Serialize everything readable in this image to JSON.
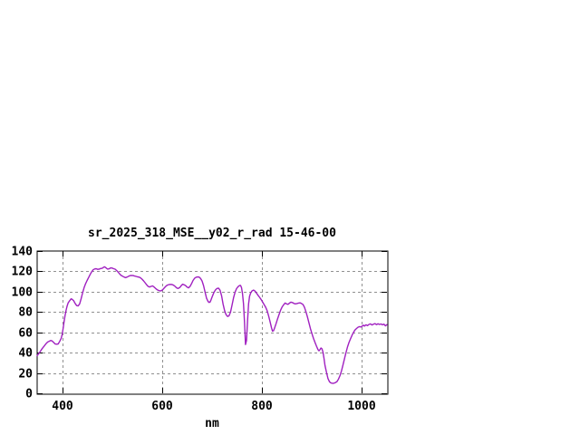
{
  "window": {
    "background_color": "#ffffff"
  },
  "chart_data": {
    "type": "line",
    "title": "sr_2025_318_MSE__y02_r_rad 15-46-00",
    "xlabel": "nm",
    "ylabel": "",
    "xlim": [
      350,
      1050
    ],
    "ylim": [
      0,
      140
    ],
    "x_ticks": [
      400,
      600,
      800,
      1000
    ],
    "y_ticks": [
      0,
      20,
      40,
      60,
      80,
      100,
      120,
      140
    ],
    "grid": true,
    "legend_position": "none",
    "line_color": "#a020c0",
    "axis_color": "#000000",
    "grid_color": "#909090",
    "series": [
      {
        "name": "sr_2025_318_MSE__y02_r_rad",
        "points": [
          [
            350,
            37
          ],
          [
            353,
            39
          ],
          [
            356,
            41
          ],
          [
            360,
            44
          ],
          [
            364,
            46.5
          ],
          [
            368,
            49
          ],
          [
            371,
            50.5
          ],
          [
            374,
            51.2
          ],
          [
            377,
            52
          ],
          [
            380,
            51.5
          ],
          [
            383,
            50
          ],
          [
            386,
            48.5
          ],
          [
            389,
            48.3
          ],
          [
            392,
            48.6
          ],
          [
            395,
            51
          ],
          [
            398,
            54
          ],
          [
            400,
            58
          ],
          [
            402,
            64
          ],
          [
            404,
            71
          ],
          [
            406,
            77
          ],
          [
            408,
            82
          ],
          [
            410,
            86
          ],
          [
            412,
            89
          ],
          [
            415,
            91
          ],
          [
            418,
            93
          ],
          [
            420,
            92.5
          ],
          [
            423,
            91
          ],
          [
            426,
            88.5
          ],
          [
            429,
            86.3
          ],
          [
            432,
            86
          ],
          [
            435,
            88
          ],
          [
            438,
            93
          ],
          [
            441,
            99
          ],
          [
            444,
            104
          ],
          [
            447,
            108
          ],
          [
            450,
            111
          ],
          [
            453,
            114
          ],
          [
            456,
            117
          ],
          [
            459,
            119.5
          ],
          [
            462,
            121.5
          ],
          [
            465,
            122.3
          ],
          [
            468,
            122.6
          ],
          [
            471,
            122
          ],
          [
            474,
            122.2
          ],
          [
            477,
            122.8
          ],
          [
            480,
            123
          ],
          [
            483,
            124
          ],
          [
            485,
            124.5
          ],
          [
            487,
            123.8
          ],
          [
            489,
            123
          ],
          [
            491,
            122.2
          ],
          [
            494,
            122.5
          ],
          [
            497,
            123.4
          ],
          [
            500,
            123.2
          ],
          [
            503,
            122.6
          ],
          [
            506,
            122.2
          ],
          [
            509,
            120.8
          ],
          [
            512,
            119.3
          ],
          [
            515,
            117.5
          ],
          [
            518,
            116
          ],
          [
            521,
            115.2
          ],
          [
            524,
            114.4
          ],
          [
            527,
            113.8
          ],
          [
            530,
            114.4
          ],
          [
            533,
            115.2
          ],
          [
            536,
            115.8
          ],
          [
            539,
            116
          ],
          [
            542,
            115.8
          ],
          [
            545,
            115.4
          ],
          [
            548,
            115
          ],
          [
            551,
            114.6
          ],
          [
            554,
            114.3
          ],
          [
            557,
            113.6
          ],
          [
            560,
            112.3
          ],
          [
            563,
            110.6
          ],
          [
            566,
            108.8
          ],
          [
            569,
            106.8
          ],
          [
            572,
            105.2
          ],
          [
            575,
            104.6
          ],
          [
            578,
            105.2
          ],
          [
            581,
            105.7
          ],
          [
            584,
            104.6
          ],
          [
            587,
            103.2
          ],
          [
            590,
            102
          ],
          [
            593,
            101.2
          ],
          [
            596,
            100.8
          ],
          [
            599,
            101
          ],
          [
            602,
            102.4
          ],
          [
            605,
            104
          ],
          [
            608,
            105.6
          ],
          [
            611,
            106.6
          ],
          [
            614,
            107
          ],
          [
            617,
            107.2
          ],
          [
            620,
            107
          ],
          [
            623,
            106.4
          ],
          [
            626,
            105.2
          ],
          [
            629,
            103.8
          ],
          [
            632,
            103.2
          ],
          [
            635,
            104
          ],
          [
            638,
            105.8
          ],
          [
            641,
            107.4
          ],
          [
            644,
            106.8
          ],
          [
            647,
            106
          ],
          [
            650,
            104.6
          ],
          [
            653,
            103.8
          ],
          [
            656,
            105.2
          ],
          [
            659,
            108
          ],
          [
            662,
            111
          ],
          [
            665,
            113.2
          ],
          [
            668,
            114.2
          ],
          [
            671,
            114.5
          ],
          [
            674,
            114.4
          ],
          [
            677,
            113
          ],
          [
            680,
            110.5
          ],
          [
            683,
            106
          ],
          [
            686,
            99.5
          ],
          [
            689,
            93.5
          ],
          [
            692,
            90.3
          ],
          [
            694,
            89.4
          ],
          [
            696,
            89.8
          ],
          [
            698,
            92
          ],
          [
            701,
            96
          ],
          [
            704,
            99.5
          ],
          [
            707,
            101.8
          ],
          [
            710,
            103.2
          ],
          [
            713,
            103.4
          ],
          [
            716,
            101.5
          ],
          [
            719,
            96
          ],
          [
            722,
            88
          ],
          [
            725,
            81.5
          ],
          [
            728,
            77.5
          ],
          [
            731,
            75.6
          ],
          [
            734,
            76.2
          ],
          [
            737,
            80
          ],
          [
            740,
            87
          ],
          [
            743,
            94
          ],
          [
            746,
            99.5
          ],
          [
            749,
            103
          ],
          [
            752,
            105
          ],
          [
            755,
            106
          ],
          [
            757,
            106.2
          ],
          [
            759,
            104
          ],
          [
            761,
            98
          ],
          [
            763,
            88
          ],
          [
            765,
            70
          ],
          [
            767,
            48
          ],
          [
            769,
            52
          ],
          [
            771,
            72
          ],
          [
            773,
            88
          ],
          [
            775,
            95.5
          ],
          [
            777,
            98.5
          ],
          [
            780,
            100.8
          ],
          [
            783,
            101.6
          ],
          [
            786,
            100.6
          ],
          [
            789,
            98.5
          ],
          [
            792,
            96.5
          ],
          [
            795,
            94.5
          ],
          [
            798,
            92.5
          ],
          [
            801,
            90
          ],
          [
            804,
            87.5
          ],
          [
            807,
            85
          ],
          [
            810,
            81.5
          ],
          [
            813,
            76.5
          ],
          [
            816,
            70.5
          ],
          [
            819,
            64.5
          ],
          [
            821,
            61.2
          ],
          [
            823,
            61.5
          ],
          [
            825,
            64
          ],
          [
            828,
            68.5
          ],
          [
            831,
            73
          ],
          [
            834,
            77.5
          ],
          [
            837,
            81.5
          ],
          [
            840,
            84.8
          ],
          [
            843,
            87
          ],
          [
            846,
            88.8
          ],
          [
            849,
            88
          ],
          [
            852,
            87.6
          ],
          [
            855,
            88.8
          ],
          [
            858,
            89.7
          ],
          [
            861,
            89.3
          ],
          [
            864,
            88.4
          ],
          [
            867,
            88
          ],
          [
            870,
            88.4
          ],
          [
            873,
            88.8
          ],
          [
            876,
            89
          ],
          [
            879,
            88.4
          ],
          [
            882,
            87.3
          ],
          [
            885,
            84.5
          ],
          [
            888,
            80
          ],
          [
            891,
            75
          ],
          [
            894,
            69
          ],
          [
            897,
            63.5
          ],
          [
            900,
            58.5
          ],
          [
            903,
            54
          ],
          [
            906,
            50
          ],
          [
            909,
            46.5
          ],
          [
            912,
            43
          ],
          [
            914,
            41.8
          ],
          [
            916,
            43
          ],
          [
            918,
            44.6
          ],
          [
            920,
            43.8
          ],
          [
            922,
            40.5
          ],
          [
            924,
            34.5
          ],
          [
            926,
            27.5
          ],
          [
            929,
            20.5
          ],
          [
            932,
            14.5
          ],
          [
            935,
            11.3
          ],
          [
            938,
            10.2
          ],
          [
            941,
            9.8
          ],
          [
            944,
            10
          ],
          [
            947,
            10.6
          ],
          [
            950,
            11.6
          ],
          [
            953,
            14
          ],
          [
            956,
            17.5
          ],
          [
            959,
            22
          ],
          [
            962,
            28
          ],
          [
            965,
            34
          ],
          [
            968,
            40
          ],
          [
            971,
            45.5
          ],
          [
            974,
            50
          ],
          [
            977,
            53.5
          ],
          [
            980,
            57
          ],
          [
            983,
            60
          ],
          [
            986,
            62.3
          ],
          [
            989,
            63.8
          ],
          [
            992,
            65
          ],
          [
            995,
            65.6
          ],
          [
            998,
            65.3
          ],
          [
            1000,
            66
          ],
          [
            1003,
            67
          ],
          [
            1005,
            66.2
          ],
          [
            1008,
            67.4
          ],
          [
            1011,
            66.6
          ],
          [
            1014,
            67.8
          ],
          [
            1017,
            68.3
          ],
          [
            1020,
            67.2
          ],
          [
            1023,
            68
          ],
          [
            1026,
            68.6
          ],
          [
            1029,
            67.6
          ],
          [
            1032,
            68.4
          ],
          [
            1035,
            67.8
          ],
          [
            1038,
            68.2
          ],
          [
            1041,
            67.4
          ],
          [
            1044,
            68
          ],
          [
            1047,
            66.3
          ],
          [
            1050,
            67.6
          ]
        ]
      }
    ]
  }
}
